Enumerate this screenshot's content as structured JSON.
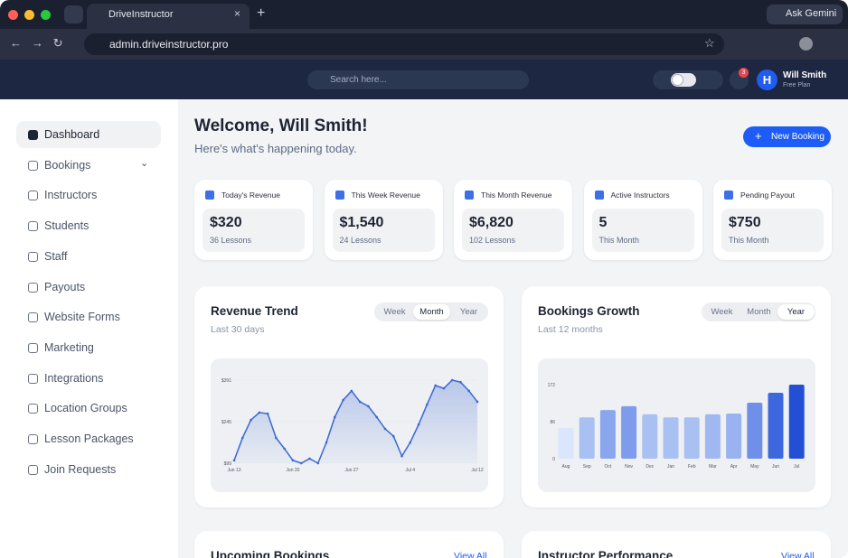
{
  "browser": {
    "tab_title": "DriveInstructor",
    "ask_gemini": "Ask Gemini",
    "url": "admin.driveinstructor.pro"
  },
  "topbar": {
    "search_placeholder": "Search here...",
    "notifications": "3",
    "user_name": "Will Smith",
    "user_plan": "Free Plan"
  },
  "sidebar": {
    "items": [
      {
        "label": "Dashboard",
        "active": true
      },
      {
        "label": "Bookings",
        "active": false,
        "submenu": true
      },
      {
        "label": "Instructors",
        "active": false
      },
      {
        "label": "Students",
        "active": false
      },
      {
        "label": "Staff",
        "active": false
      },
      {
        "label": "Payouts",
        "active": false
      },
      {
        "label": "Website Forms",
        "active": false
      },
      {
        "label": "Marketing",
        "active": false
      },
      {
        "label": "Integrations",
        "active": false
      },
      {
        "label": "Location Groups",
        "active": false
      },
      {
        "label": "Lesson Packages",
        "active": false
      },
      {
        "label": "Join Requests",
        "active": false
      }
    ]
  },
  "header": {
    "title": "Welcome, Will Smith!",
    "subtitle": "Here's what's happening today.",
    "button": "New Booking"
  },
  "stats": [
    {
      "label": "Today's Revenue",
      "value": "$320",
      "sub": "36 Lessons"
    },
    {
      "label": "This Week Revenue",
      "value": "$1,540",
      "sub": "24 Lessons"
    },
    {
      "label": "This Month Revenue",
      "value": "$6,820",
      "sub": "102 Lessons"
    },
    {
      "label": "Active Instructors",
      "value": "5",
      "sub": "This Month"
    },
    {
      "label": "Pending Payout",
      "value": "$750",
      "sub": "This Month"
    }
  ],
  "chart_data": [
    {
      "type": "line",
      "title": "Revenue Trend",
      "subtitle": "Last 30 days",
      "tabs": [
        {
          "label": "Week",
          "active": false
        },
        {
          "label": "Month",
          "active": true
        },
        {
          "label": "Year",
          "active": false
        }
      ],
      "categories": [
        "Jun 13",
        null,
        null,
        null,
        null,
        null,
        null,
        "Jun 20",
        null,
        null,
        null,
        null,
        null,
        null,
        "Jun 27",
        null,
        null,
        null,
        null,
        null,
        null,
        "Jul 4",
        null,
        null,
        null,
        null,
        null,
        null,
        null,
        "Jul 12"
      ],
      "values": [
        109,
        188,
        251,
        277,
        273,
        188,
        150,
        109,
        99,
        115,
        99,
        172,
        261,
        321,
        353,
        315,
        299,
        261,
        220,
        194,
        124,
        172,
        235,
        305,
        372,
        362,
        391,
        384,
        353,
        315
      ],
      "color": "#3a68d4",
      "ylim": [
        99,
        391
      ],
      "yticks": [
        {
          "value": 99,
          "label": "$99"
        },
        {
          "value": 245,
          "label": "$245"
        },
        {
          "value": 391,
          "label": "$391"
        }
      ],
      "grid": true
    },
    {
      "type": "bar",
      "title": "Bookings Growth",
      "subtitle": "Last 12 months",
      "tabs": [
        {
          "label": "Week",
          "active": false
        },
        {
          "label": "Month",
          "active": false
        },
        {
          "label": "Year",
          "active": true
        }
      ],
      "categories": [
        "Aug",
        "Sep",
        "Oct",
        "Nov",
        "Dec",
        "Jan",
        "Feb",
        "Mar",
        "Apr",
        "May",
        "Jun",
        "Jul"
      ],
      "values": [
        71,
        96,
        113,
        122,
        103,
        96,
        96,
        103,
        105,
        130,
        153,
        172
      ],
      "colors": [
        "#d9e6fb",
        "#a9c0f3",
        "#8aa6ee",
        "#7e9bec",
        "#a9c0f3",
        "#a9c0f3",
        "#a9c0f3",
        "#a0b8f1",
        "#9ab3f0",
        "#6f8fe8",
        "#3d68dd",
        "#234fd4"
      ],
      "ylim": [
        0,
        172
      ],
      "yticks": [
        0,
        86,
        172
      ],
      "grid": false
    }
  ],
  "panels": [
    {
      "title": "Upcoming Bookings",
      "link": "View All"
    },
    {
      "title": "Instructor Performance",
      "link": "View All"
    }
  ]
}
